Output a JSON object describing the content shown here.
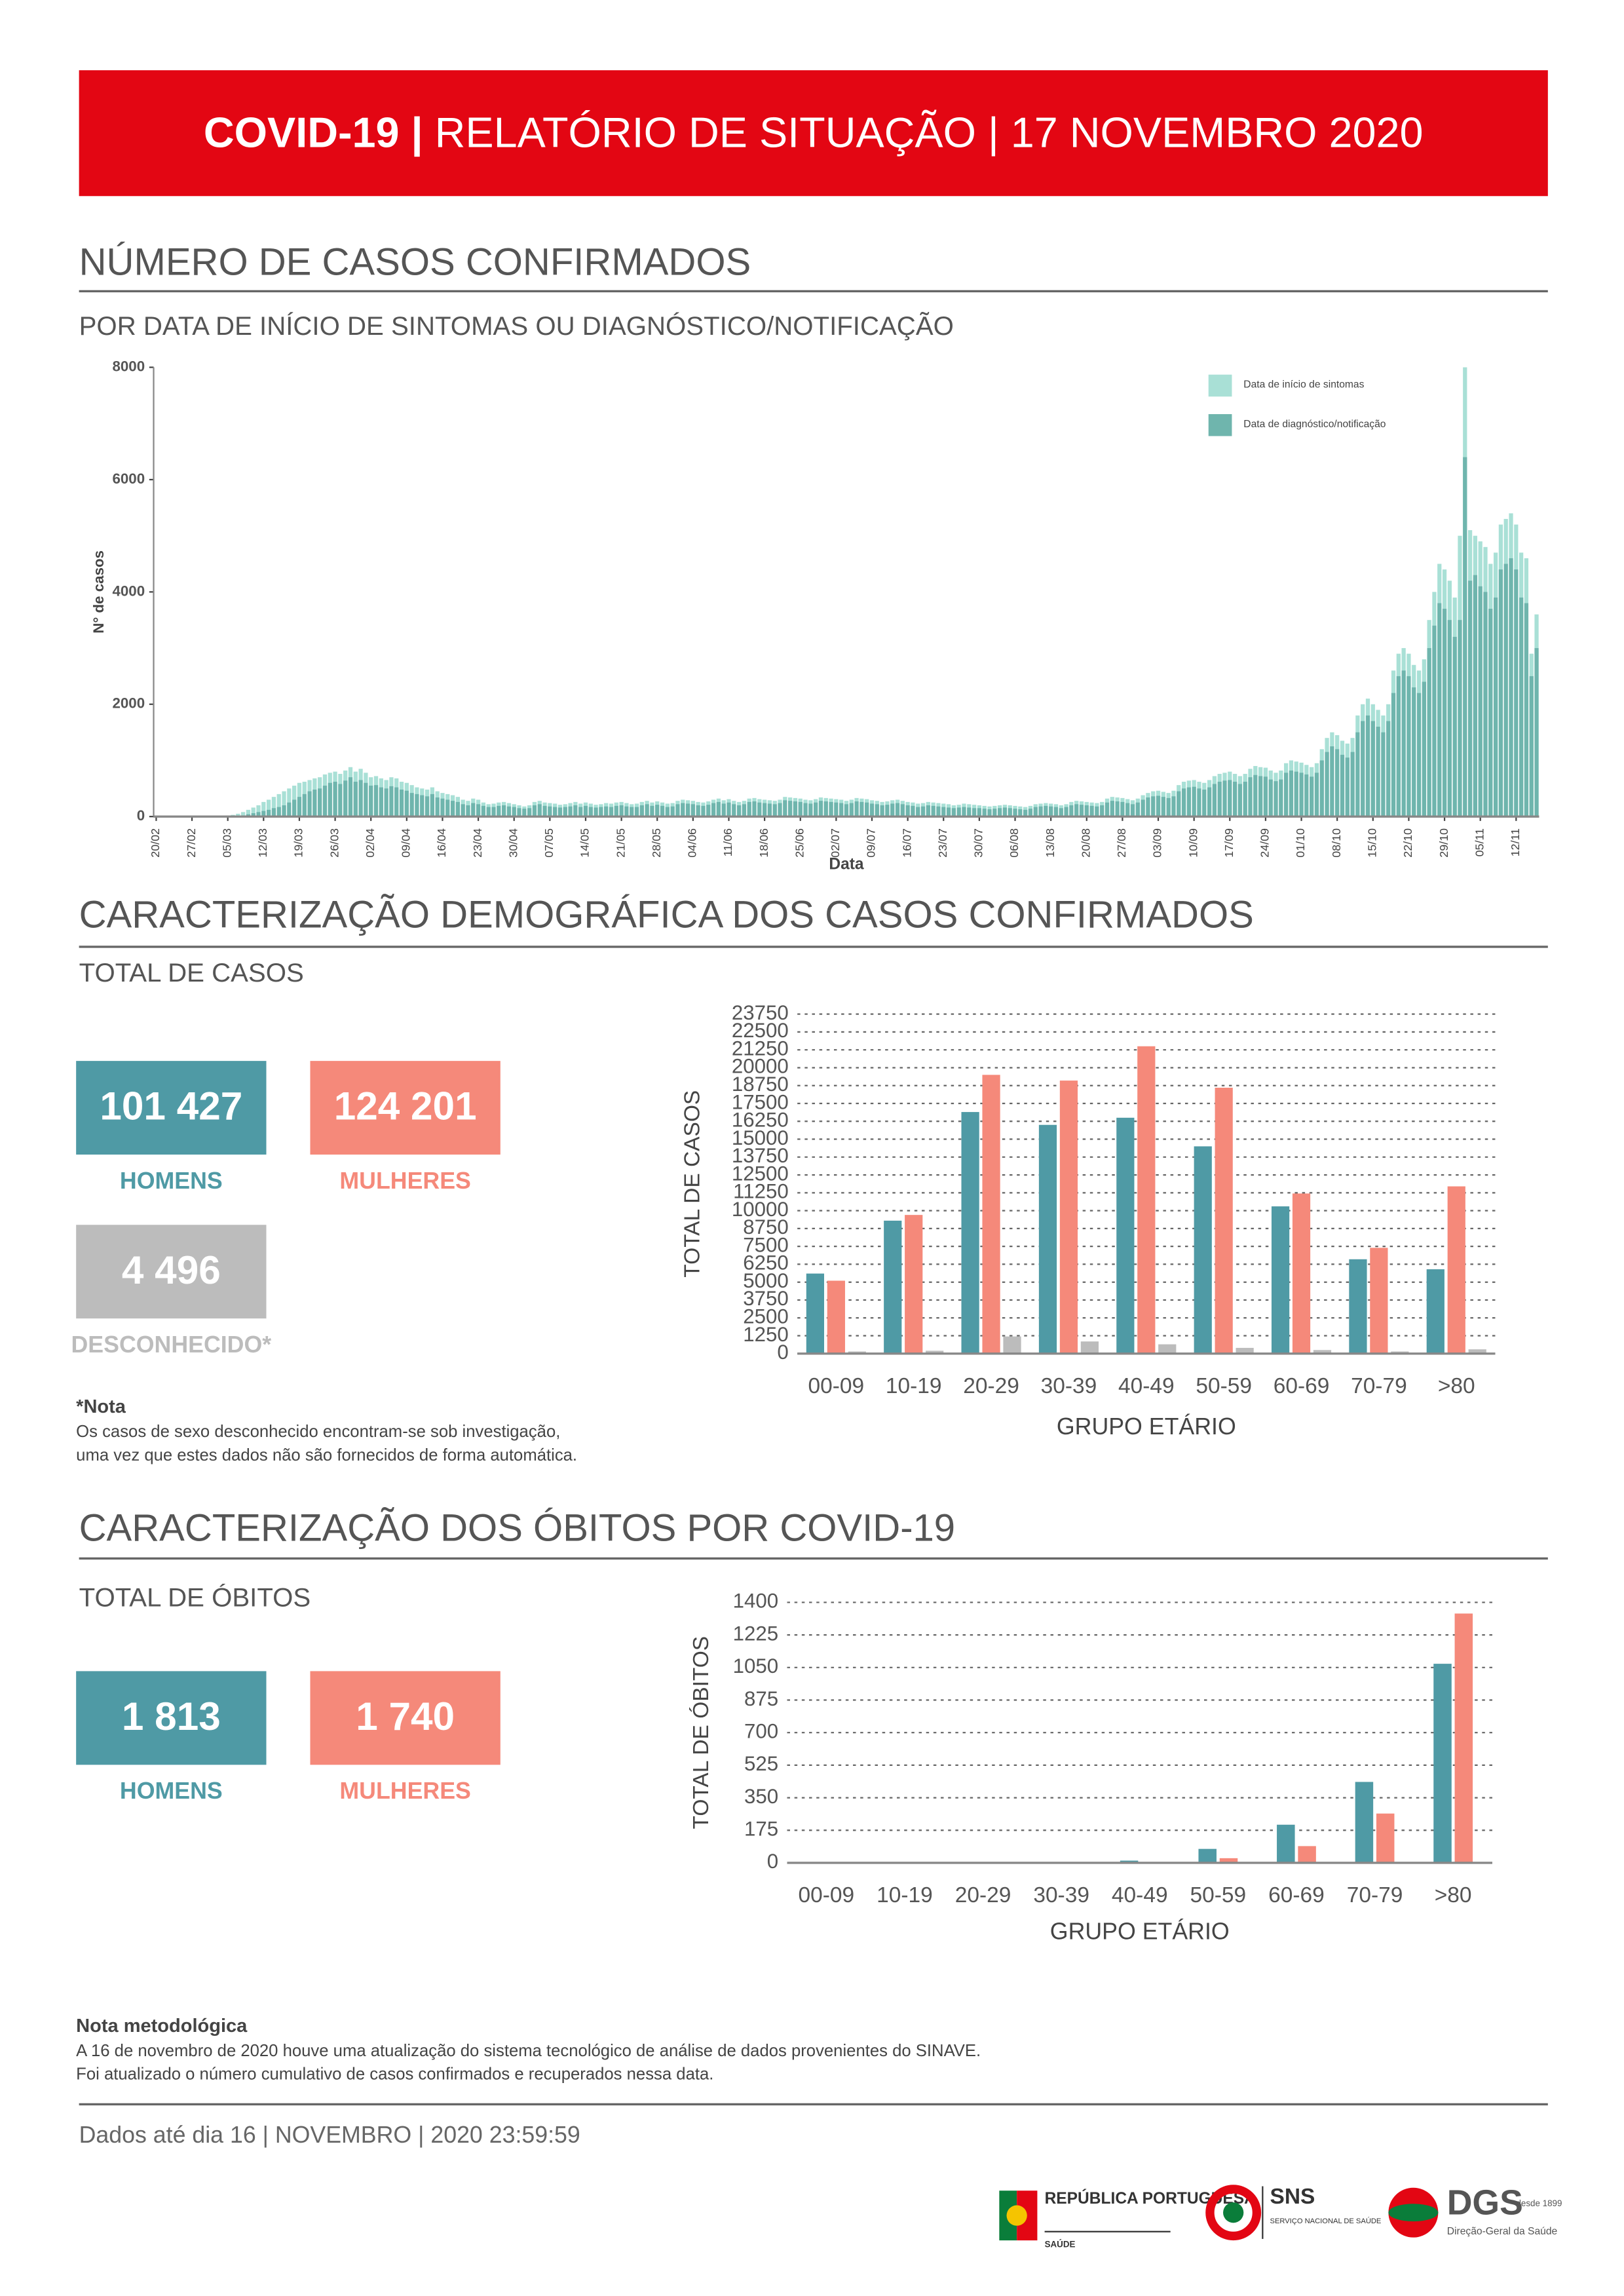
{
  "header": {
    "title_bold": "COVID-19 |",
    "title_rest": "RELATÓRIO DE SITUAÇÃO | 17 NOVEMBRO 2020"
  },
  "confirmed": {
    "title": "NÚMERO DE CASOS CONFIRMADOS",
    "subtitle": "POR DATA DE INÍCIO DE SINTOMAS OU DIAGNÓSTICO/NOTIFICAÇÃO"
  },
  "cases": {
    "title": "CARACTERIZAÇÃO DEMOGRÁFICA DOS CASOS CONFIRMADOS",
    "subtitle": "TOTAL DE CASOS",
    "stats": [
      {
        "value": "101 427",
        "label": "HOMENS"
      },
      {
        "value": "124 201",
        "label": "MULHERES"
      },
      {
        "value": "4 496",
        "label": "DESCONHECIDO*"
      }
    ],
    "note_title": "*Nota",
    "note": [
      "Os casos de sexo desconhecido encontram-se sob investigação,",
      "uma vez que estes dados não são fornecidos de forma automática."
    ]
  },
  "deaths": {
    "title": "CARACTERIZAÇÃO DOS ÓBITOS POR COVID-19",
    "subtitle": "TOTAL DE ÓBITOS",
    "stats": [
      {
        "value": "1 813",
        "label": "HOMENS"
      },
      {
        "value": "1 740",
        "label": "MULHERES"
      }
    ]
  },
  "method": {
    "title": "Nota metodológica",
    "lines": [
      "A 16 de novembro de 2020 houve uma atualização do sistema tecnológico de análise de dados provenientes do SINAVE.",
      "Foi atualizado o número cumulativo de casos confirmados e recuperados nessa data."
    ]
  },
  "footer": {
    "text": "Dados até dia 16 | NOVEMBRO | 2020 23:59:59"
  },
  "logos": {
    "republica": "REPÚBLICA PORTUGUESA",
    "saude": "SAÚDE",
    "sns": "SNS",
    "sns_sub": "SERVIÇO NACIONAL DE SAÚDE",
    "dgs": "DGS",
    "dgs_since": "desde 1899",
    "dgs_sub": "Direção-Geral da Saúde"
  },
  "chart_data": [
    {
      "type": "bar",
      "barmode": "overlay",
      "x_label": "Data",
      "y_label": "N° de casos",
      "legend": "upper right",
      "grid": false,
      "ylim": [
        0,
        8000
      ],
      "yticks": [
        0,
        2000,
        4000,
        6000,
        8000
      ],
      "categories": [
        "20/02",
        null,
        null,
        null,
        null,
        null,
        null,
        "27/02",
        null,
        null,
        null,
        null,
        null,
        null,
        "05/03",
        null,
        null,
        null,
        null,
        null,
        null,
        "12/03",
        null,
        null,
        null,
        null,
        null,
        null,
        "19/03",
        null,
        null,
        null,
        null,
        null,
        null,
        "26/03",
        null,
        null,
        null,
        null,
        null,
        null,
        "02/04",
        null,
        null,
        null,
        null,
        null,
        null,
        "09/04",
        null,
        null,
        null,
        null,
        null,
        null,
        "16/04",
        null,
        null,
        null,
        null,
        null,
        null,
        "23/04",
        null,
        null,
        null,
        null,
        null,
        null,
        "30/04",
        null,
        null,
        null,
        null,
        null,
        null,
        "07/05",
        null,
        null,
        null,
        null,
        null,
        null,
        "14/05",
        null,
        null,
        null,
        null,
        null,
        null,
        "21/05",
        null,
        null,
        null,
        null,
        null,
        null,
        "28/05",
        null,
        null,
        null,
        null,
        null,
        null,
        "04/06",
        null,
        null,
        null,
        null,
        null,
        null,
        "11/06",
        null,
        null,
        null,
        null,
        null,
        null,
        "18/06",
        null,
        null,
        null,
        null,
        null,
        null,
        "25/06",
        null,
        null,
        null,
        null,
        null,
        null,
        "02/07",
        null,
        null,
        null,
        null,
        null,
        null,
        "09/07",
        null,
        null,
        null,
        null,
        null,
        null,
        "16/07",
        null,
        null,
        null,
        null,
        null,
        null,
        "23/07",
        null,
        null,
        null,
        null,
        null,
        null,
        "30/07",
        null,
        null,
        null,
        null,
        null,
        null,
        "06/08",
        null,
        null,
        null,
        null,
        null,
        null,
        "13/08",
        null,
        null,
        null,
        null,
        null,
        null,
        "20/08",
        null,
        null,
        null,
        null,
        null,
        null,
        "27/08",
        null,
        null,
        null,
        null,
        null,
        null,
        "03/09",
        null,
        null,
        null,
        null,
        null,
        null,
        "10/09",
        null,
        null,
        null,
        null,
        null,
        null,
        "17/09",
        null,
        null,
        null,
        null,
        null,
        null,
        "24/09",
        null,
        null,
        null,
        null,
        null,
        null,
        "01/10",
        null,
        null,
        null,
        null,
        null,
        null,
        "08/10",
        null,
        null,
        null,
        null,
        null,
        null,
        "15/10",
        null,
        null,
        null,
        null,
        null,
        null,
        "22/10",
        null,
        null,
        null,
        null,
        null,
        null,
        "29/10",
        null,
        null,
        null,
        null,
        null,
        null,
        "05/11",
        null,
        null,
        null,
        null,
        null,
        null,
        "12/11",
        null,
        null,
        null,
        null
      ],
      "series": [
        {
          "name": "Data de início de sintomas",
          "color": "#a9e0d6",
          "values": [
            0,
            0,
            0,
            0,
            0,
            0,
            0,
            0,
            0,
            0,
            0,
            2,
            5,
            10,
            20,
            30,
            50,
            80,
            120,
            160,
            200,
            260,
            300,
            350,
            400,
            450,
            500,
            550,
            600,
            620,
            650,
            680,
            700,
            750,
            780,
            800,
            760,
            820,
            880,
            800,
            850,
            780,
            700,
            720,
            680,
            650,
            700,
            680,
            620,
            600,
            560,
            520,
            500,
            480,
            520,
            450,
            420,
            400,
            380,
            350,
            300,
            280,
            320,
            300,
            250,
            220,
            230,
            250,
            260,
            240,
            220,
            200,
            180,
            200,
            260,
            280,
            250,
            240,
            230,
            210,
            220,
            240,
            260,
            230,
            250,
            230,
            210,
            220,
            240,
            230,
            250,
            260,
            240,
            220,
            230,
            260,
            280,
            250,
            270,
            250,
            230,
            240,
            280,
            300,
            290,
            280,
            260,
            250,
            270,
            300,
            320,
            290,
            310,
            280,
            260,
            280,
            320,
            330,
            310,
            300,
            290,
            280,
            300,
            350,
            340,
            330,
            320,
            300,
            290,
            310,
            340,
            330,
            320,
            310,
            300,
            280,
            300,
            330,
            320,
            310,
            290,
            280,
            260,
            270,
            290,
            300,
            280,
            260,
            250,
            230,
            240,
            260,
            250,
            240,
            230,
            220,
            200,
            210,
            230,
            220,
            210,
            200,
            190,
            180,
            190,
            200,
            210,
            200,
            190,
            180,
            170,
            190,
            220,
            230,
            240,
            230,
            220,
            200,
            220,
            260,
            280,
            270,
            260,
            250,
            240,
            260,
            320,
            350,
            340,
            330,
            310,
            290,
            320,
            380,
            420,
            450,
            460,
            440,
            420,
            460,
            560,
            620,
            640,
            650,
            620,
            600,
            650,
            720,
            760,
            780,
            800,
            760,
            720,
            760,
            850,
            900,
            880,
            870,
            820,
            780,
            820,
            950,
            1000,
            980,
            960,
            920,
            880,
            950,
            1200,
            1400,
            1500,
            1450,
            1350,
            1300,
            1400,
            1800,
            2000,
            2100,
            2000,
            1900,
            1800,
            2000,
            2600,
            2900,
            3000,
            2900,
            2700,
            2600,
            2800,
            3500,
            4000,
            4500,
            4400,
            4200,
            3900,
            5000,
            8000,
            5100,
            5000,
            4900,
            4800,
            4500,
            4700,
            5200,
            5300,
            5400,
            5200,
            4700,
            4600,
            2900,
            3600
          ]
        },
        {
          "name": "Data de diagnóstico/notificação",
          "color": "#6fb5ad",
          "values": [
            0,
            0,
            0,
            0,
            0,
            0,
            0,
            0,
            0,
            0,
            0,
            0,
            2,
            3,
            5,
            8,
            10,
            20,
            40,
            60,
            80,
            100,
            120,
            150,
            170,
            200,
            250,
            300,
            350,
            400,
            450,
            480,
            500,
            550,
            600,
            620,
            580,
            640,
            700,
            620,
            650,
            600,
            550,
            560,
            520,
            500,
            540,
            520,
            480,
            460,
            420,
            400,
            380,
            360,
            400,
            340,
            320,
            300,
            280,
            260,
            220,
            200,
            240,
            220,
            190,
            170,
            170,
            190,
            200,
            180,
            170,
            150,
            140,
            150,
            200,
            220,
            190,
            180,
            170,
            160,
            170,
            180,
            200,
            170,
            190,
            170,
            160,
            170,
            180,
            170,
            190,
            200,
            180,
            170,
            170,
            200,
            220,
            190,
            210,
            190,
            170,
            180,
            220,
            240,
            230,
            220,
            200,
            190,
            210,
            240,
            260,
            230,
            250,
            220,
            200,
            220,
            260,
            270,
            250,
            240,
            230,
            220,
            240,
            290,
            280,
            270,
            260,
            240,
            230,
            250,
            280,
            270,
            260,
            250,
            240,
            220,
            240,
            270,
            260,
            250,
            230,
            220,
            200,
            210,
            230,
            240,
            220,
            200,
            190,
            170,
            180,
            200,
            190,
            180,
            170,
            160,
            150,
            160,
            170,
            160,
            150,
            150,
            140,
            130,
            140,
            150,
            160,
            150,
            140,
            130,
            120,
            140,
            170,
            180,
            190,
            180,
            170,
            150,
            170,
            200,
            220,
            210,
            200,
            190,
            180,
            200,
            250,
            280,
            270,
            260,
            240,
            220,
            250,
            300,
            340,
            360,
            370,
            350,
            330,
            360,
            450,
            500,
            520,
            530,
            500,
            480,
            520,
            580,
            620,
            640,
            650,
            620,
            580,
            620,
            700,
            740,
            720,
            710,
            660,
            630,
            660,
            780,
            820,
            800,
            780,
            750,
            710,
            780,
            1000,
            1150,
            1250,
            1200,
            1100,
            1050,
            1150,
            1500,
            1700,
            1800,
            1700,
            1600,
            1500,
            1700,
            2200,
            2500,
            2600,
            2500,
            2300,
            2200,
            2400,
            3000,
            3400,
            3800,
            3700,
            3500,
            3200,
            3500,
            6400,
            4200,
            4300,
            4100,
            4000,
            3700,
            3900,
            4400,
            4500,
            4600,
            4400,
            3900,
            3800,
            2500,
            3000
          ]
        }
      ]
    },
    {
      "type": "bar",
      "barmode": "group",
      "x_label": "GRUPO ETÁRIO",
      "y_label": "TOTAL DE CASOS",
      "grid": true,
      "ylim": [
        0,
        23750
      ],
      "yticks": [
        0,
        1250,
        2500,
        3750,
        5000,
        6250,
        7500,
        8750,
        10000,
        11250,
        12500,
        13750,
        15000,
        16250,
        17500,
        18750,
        20000,
        21250,
        22500,
        23750
      ],
      "categories": [
        "00-09",
        "10-19",
        "20-29",
        "30-39",
        "40-49",
        "50-59",
        "60-69",
        "70-79",
        ">80"
      ],
      "series": [
        {
          "color": "#4f9aa5",
          "values": [
            5600,
            9300,
            16900,
            16000,
            16500,
            14500,
            10300,
            6600,
            5900
          ]
        },
        {
          "color": "#f5897a",
          "values": [
            5100,
            9700,
            19500,
            19100,
            21500,
            18600,
            11200,
            7400,
            11700
          ]
        },
        {
          "color": "#bcbcbc",
          "values": [
            150,
            200,
            1200,
            850,
            650,
            400,
            250,
            150,
            300
          ]
        }
      ]
    },
    {
      "type": "bar",
      "barmode": "group",
      "x_label": "GRUPO ETÁRIO",
      "y_label": "TOTAL DE ÓBITOS",
      "grid": true,
      "ylim": [
        0,
        1400
      ],
      "yticks": [
        0,
        175,
        350,
        525,
        700,
        875,
        1050,
        1225,
        1400
      ],
      "categories": [
        "00-09",
        "10-19",
        "20-29",
        "30-39",
        "40-49",
        "50-59",
        "60-69",
        "70-79",
        ">80"
      ],
      "series": [
        {
          "color": "#4f9aa5",
          "values": [
            0,
            0,
            1,
            3,
            12,
            75,
            205,
            435,
            1070
          ]
        },
        {
          "color": "#f5897a",
          "values": [
            0,
            0,
            0,
            1,
            4,
            25,
            90,
            265,
            1340
          ]
        }
      ]
    }
  ]
}
